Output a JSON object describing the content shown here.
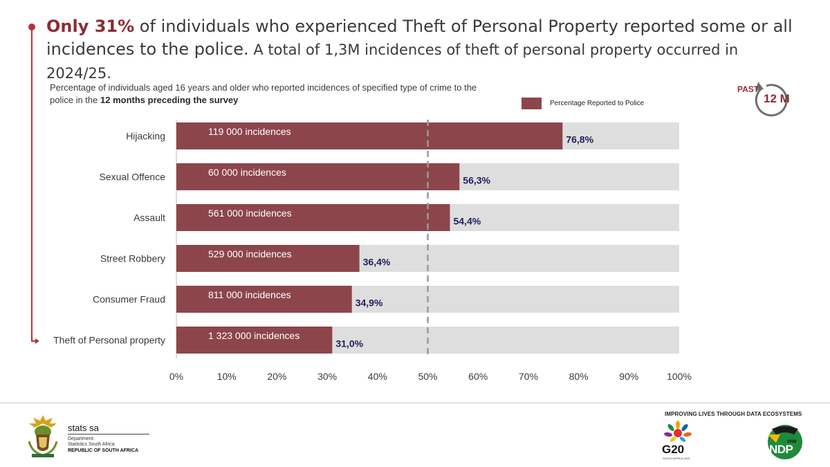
{
  "headline": {
    "accent": "Only 31%",
    "lead": " of individuals who experienced Theft of Personal Property reported some or all incidences to the police.",
    "rest": " A total of 1,3M incidences of theft of personal property occurred in 2024/25."
  },
  "subtitle": {
    "part1": "Percentage of individuals aged 16 years and older who reported incidences of specified type of crime to the police in the ",
    "bold": "12 months preceding the survey"
  },
  "badge": {
    "past": "PAST",
    "value": "12 M"
  },
  "chart_data": {
    "type": "bar",
    "orientation": "horizontal",
    "categories": [
      "Hijacking",
      "Sexual Offence",
      "Assault",
      "Street Robbery",
      "Consumer Fraud",
      "Theft of Personal property"
    ],
    "series": [
      {
        "name": "Percentage Reported to Police",
        "values": [
          76.8,
          56.3,
          54.4,
          36.4,
          34.9,
          31.0
        ],
        "value_labels": [
          "76,8%",
          "56,3%",
          "54,4%",
          "36,4%",
          "34,9%",
          "31,0%"
        ],
        "incidence_labels": [
          "119 000  incidences",
          "60 000  incidences",
          "561 000  incidences",
          "529 000  incidences",
          "811 000 incidences",
          "1 323 000  incidences"
        ],
        "color": "#8c464b"
      }
    ],
    "background_color": "#dedede",
    "reference_line": 50,
    "xlim": [
      0,
      100
    ],
    "x_ticks": [
      "0%",
      "10%",
      "20%",
      "30%",
      "40%",
      "50%",
      "60%",
      "70%",
      "80%",
      "90%",
      "100%"
    ],
    "legend_position": "top-right",
    "grid": false
  },
  "footer": {
    "org_name": "stats sa",
    "org_dept": [
      "Department:",
      "Statistics South Africa"
    ],
    "org_country": "REPUBLIC OF SOUTH AFRICA",
    "tagline": "IMPROVING LIVES THROUGH DATA ECOSYSTEMS",
    "g20": "G20",
    "g20_sub": "SOUTH AFRICA 2025",
    "ndp": "NDP",
    "ndp_year": "2030"
  },
  "colors": {
    "accent": "#8b2c34",
    "bar": "#8c464b",
    "track": "#dedede",
    "value_label": "#1f1f5c"
  }
}
